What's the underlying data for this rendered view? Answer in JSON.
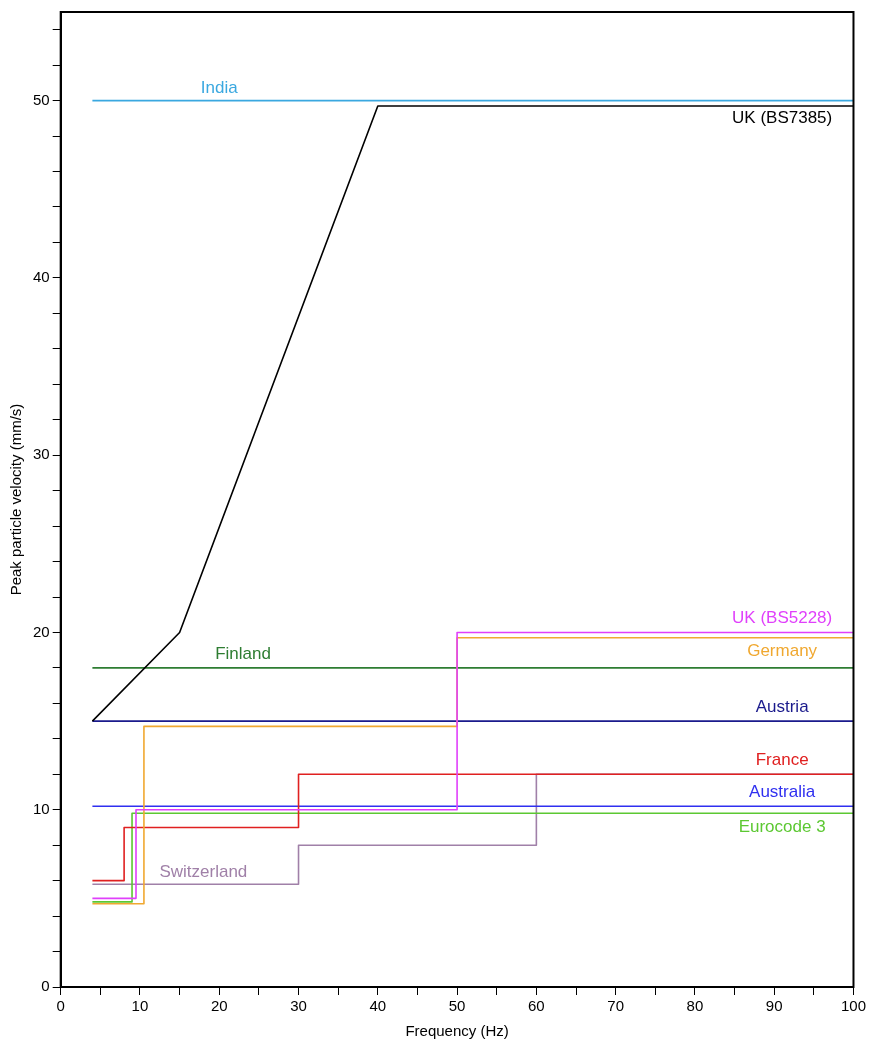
{
  "chart_data": {
    "type": "step",
    "xlabel": "Frequency (Hz)",
    "ylabel": "Peak particle velocity (mm/s)",
    "xlim": [
      0,
      100
    ],
    "ylim": [
      0,
      55
    ],
    "xticks": [
      0,
      {
        "value": 5,
        "label": null
      },
      10,
      {
        "value": 15,
        "label": null
      },
      20,
      {
        "value": 25,
        "label": null
      },
      30,
      {
        "value": 35,
        "label": null
      },
      40,
      {
        "value": 45,
        "label": null
      },
      50,
      {
        "value": 55,
        "label": null
      },
      60,
      {
        "value": 65,
        "label": null
      },
      70,
      {
        "value": 75,
        "label": null
      },
      80,
      {
        "value": 85,
        "label": null
      },
      90,
      {
        "value": 95,
        "label": null
      },
      100
    ],
    "yticks": [
      0,
      {
        "value": 2,
        "label": null
      },
      {
        "value": 4,
        "label": null
      },
      {
        "value": 6,
        "label": null
      },
      {
        "value": 8,
        "label": null
      },
      10,
      {
        "value": 12,
        "label": null
      },
      {
        "value": 14,
        "label": null
      },
      {
        "value": 16,
        "label": null
      },
      {
        "value": 18,
        "label": null
      },
      20,
      {
        "value": 22,
        "label": null
      },
      {
        "value": 24,
        "label": null
      },
      {
        "value": 26,
        "label": null
      },
      {
        "value": 28,
        "label": null
      },
      30,
      {
        "value": 32,
        "label": null
      },
      {
        "value": 34,
        "label": null
      },
      {
        "value": 36,
        "label": null
      },
      {
        "value": 38,
        "label": null
      },
      40,
      {
        "value": 42,
        "label": null
      },
      {
        "value": 44,
        "label": null
      },
      {
        "value": 46,
        "label": null
      },
      {
        "value": 48,
        "label": null
      },
      50,
      {
        "value": 52,
        "label": null
      },
      {
        "value": 54,
        "label": null
      }
    ],
    "grid": false,
    "legend": false,
    "marker": "none",
    "line_style": "solid",
    "series": [
      {
        "name": "India",
        "color": "#3aa8e0",
        "x": [
          4,
          100
        ],
        "values": [
          50,
          50
        ]
      },
      {
        "name": "UK (BS7385)",
        "color": "#000000",
        "type": "line",
        "x": [
          4,
          15,
          40,
          100
        ],
        "values": [
          15,
          20,
          49.7,
          49.7
        ]
      },
      {
        "name": "UK (BS5228)",
        "color": "#e040fb",
        "x": [
          4,
          9.5,
          50,
          100
        ],
        "values": [
          5,
          10,
          20,
          20
        ]
      },
      {
        "name": "Germany",
        "color": "#f0a830",
        "x": [
          4,
          10.5,
          50,
          100
        ],
        "values": [
          4.7,
          14.7,
          19.7,
          19.7
        ]
      },
      {
        "name": "Finland",
        "color": "#2e7d32",
        "x": [
          4,
          100
        ],
        "values": [
          18,
          18
        ]
      },
      {
        "name": "Austria",
        "color": "#1a1a8c",
        "x": [
          4,
          100
        ],
        "values": [
          15,
          15
        ]
      },
      {
        "name": "France",
        "color": "#e02020",
        "x": [
          4,
          8,
          30,
          100
        ],
        "values": [
          6,
          9,
          12,
          12
        ]
      },
      {
        "name": "Australia",
        "color": "#3030f0",
        "x": [
          4,
          100
        ],
        "values": [
          10.2,
          10.2
        ]
      },
      {
        "name": "Eurocode 3",
        "color": "#5cc832",
        "x": [
          4,
          9,
          100
        ],
        "values": [
          4.8,
          9.8,
          9.8
        ]
      },
      {
        "name": "Switzerland",
        "color": "#a080a8",
        "x": [
          4,
          30,
          60,
          100
        ],
        "values": [
          5.8,
          8,
          12,
          12
        ]
      }
    ]
  }
}
